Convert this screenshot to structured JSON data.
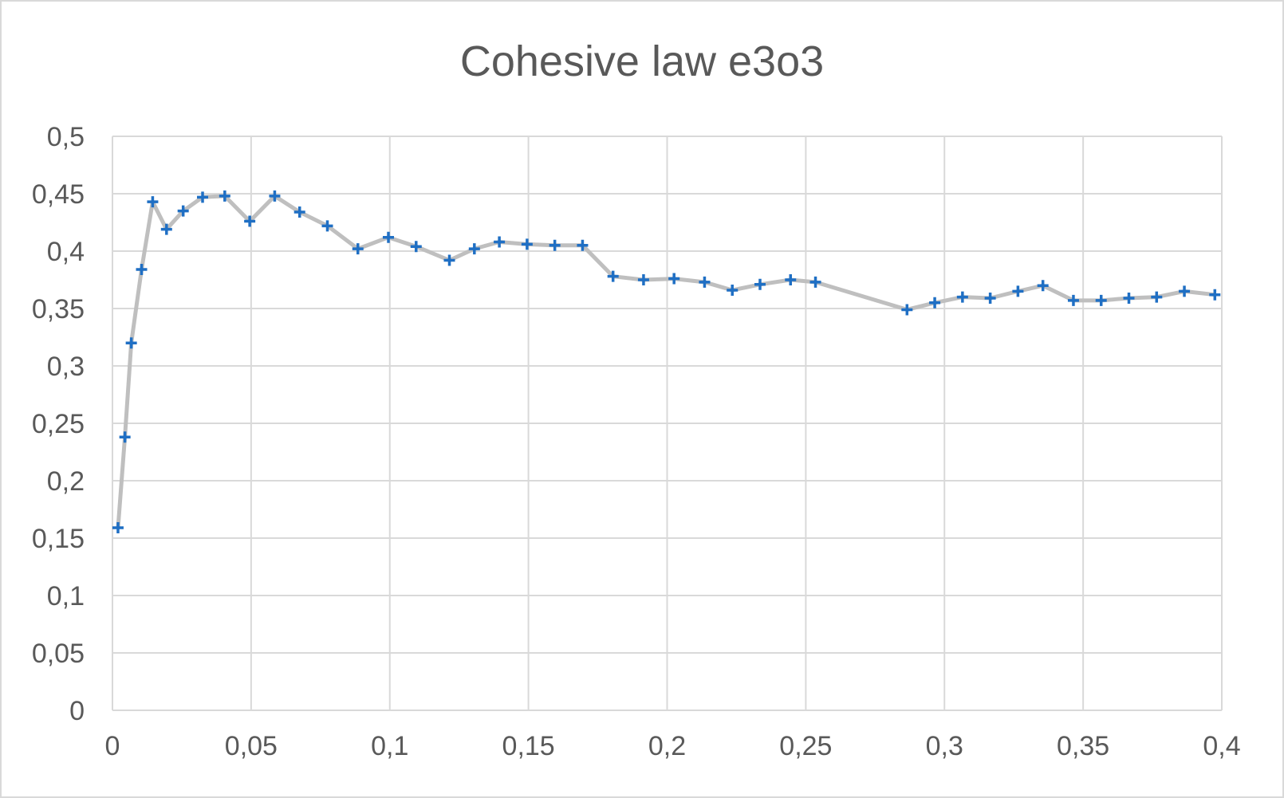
{
  "chart_data": {
    "type": "line",
    "title": "Cohesive law e3o3",
    "xlabel": "",
    "ylabel": "",
    "xlim": [
      0,
      0.4
    ],
    "ylim": [
      0,
      0.5
    ],
    "x_ticks": [
      "0",
      "0,05",
      "0,1",
      "0,15",
      "0,2",
      "0,25",
      "0,3",
      "0,35",
      "0,4"
    ],
    "y_ticks": [
      "0",
      "0,05",
      "0,1",
      "0,15",
      "0,2",
      "0,25",
      "0,3",
      "0,35",
      "0,4",
      "0,45",
      "0,5"
    ],
    "grid": true,
    "legend": "none",
    "colors": {
      "line": "#bfbfbf",
      "marker": "#1f6fc4",
      "grid": "#d9d9d9",
      "text": "#595959",
      "frame": "#d9d9d9"
    },
    "series": [
      {
        "x": [
          0.002,
          0.0045,
          0.0068,
          0.0105,
          0.0145,
          0.0195,
          0.0255,
          0.0325,
          0.0405,
          0.0495,
          0.0585,
          0.0675,
          0.0775,
          0.0885,
          0.0995,
          0.1095,
          0.1215,
          0.1305,
          0.1395,
          0.1495,
          0.1595,
          0.1695,
          0.1805,
          0.1915,
          0.2025,
          0.2135,
          0.2235,
          0.2335,
          0.2445,
          0.2535,
          0.2865,
          0.2965,
          0.3065,
          0.3165,
          0.3265,
          0.3355,
          0.3465,
          0.3565,
          0.3665,
          0.3765,
          0.3865,
          0.3975
        ],
        "values": [
          0.159,
          0.238,
          0.32,
          0.384,
          0.443,
          0.419,
          0.435,
          0.447,
          0.448,
          0.426,
          0.448,
          0.434,
          0.422,
          0.402,
          0.412,
          0.404,
          0.392,
          0.402,
          0.408,
          0.406,
          0.405,
          0.405,
          0.378,
          0.375,
          0.376,
          0.373,
          0.366,
          0.371,
          0.375,
          0.373,
          0.349,
          0.355,
          0.36,
          0.359,
          0.365,
          0.37,
          0.357,
          0.357,
          0.359,
          0.36,
          0.365,
          0.362
        ]
      }
    ]
  }
}
